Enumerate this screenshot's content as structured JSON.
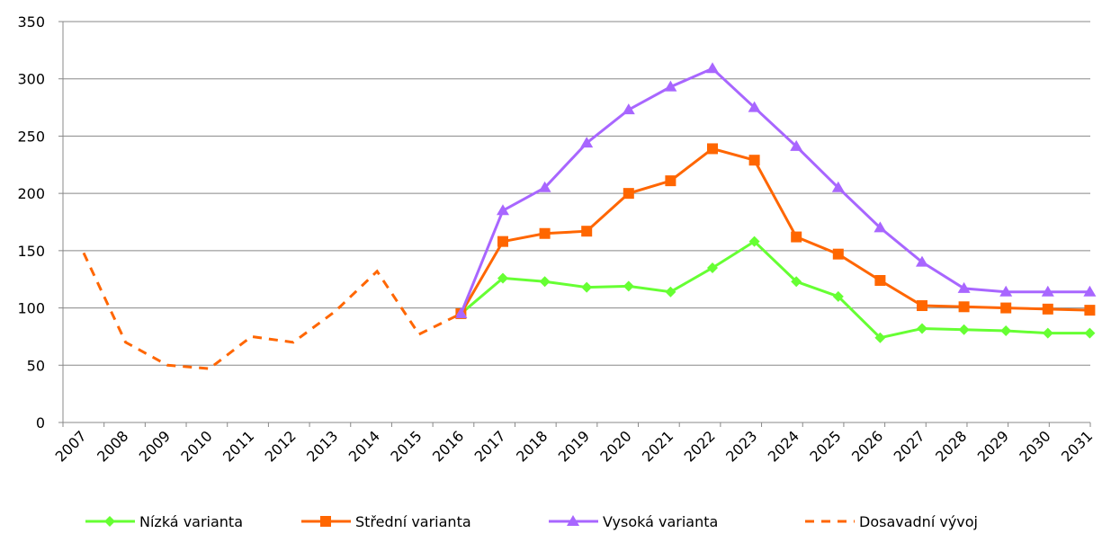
{
  "chart_data": {
    "type": "line",
    "categories": [
      "2007",
      "2008",
      "2009",
      "2010",
      "2011",
      "2012",
      "2013",
      "2014",
      "2015",
      "2016",
      "2017",
      "2018",
      "2019",
      "2020",
      "2021",
      "2022",
      "2023",
      "2024",
      "2025",
      "2026",
      "2027",
      "2028",
      "2029",
      "2030",
      "2031"
    ],
    "series": [
      {
        "name": "Nízká varianta",
        "color": "#66ff33",
        "marker": "diamond",
        "values": [
          null,
          null,
          null,
          null,
          null,
          null,
          null,
          null,
          null,
          95,
          126,
          123,
          118,
          119,
          114,
          135,
          158,
          123,
          110,
          74,
          82,
          81,
          80,
          78,
          78
        ]
      },
      {
        "name": "Střední varianta",
        "color": "#ff6600",
        "marker": "square",
        "values": [
          null,
          null,
          null,
          null,
          null,
          null,
          null,
          null,
          null,
          95,
          158,
          165,
          167,
          200,
          211,
          239,
          229,
          162,
          147,
          124,
          102,
          101,
          100,
          99,
          98
        ]
      },
      {
        "name": "Vysoká varianta",
        "color": "#a866ff",
        "marker": "triangle",
        "values": [
          null,
          null,
          null,
          null,
          null,
          null,
          null,
          null,
          null,
          95,
          185,
          205,
          244,
          273,
          293,
          309,
          275,
          241,
          205,
          170,
          140,
          117,
          114,
          114,
          114
        ]
      },
      {
        "name": "Dosavadní vývoj",
        "color": "#ff6600",
        "dashed": true,
        "values": [
          148,
          70,
          50,
          47,
          75,
          70,
          97,
          132,
          77,
          95,
          null,
          null,
          null,
          null,
          null,
          null,
          null,
          null,
          null,
          null,
          null,
          null,
          null,
          null,
          null
        ]
      }
    ],
    "ylim": [
      0,
      350
    ],
    "yticks": [
      0,
      50,
      100,
      150,
      200,
      250,
      300,
      350
    ],
    "grid": true,
    "legend": "bottom"
  }
}
